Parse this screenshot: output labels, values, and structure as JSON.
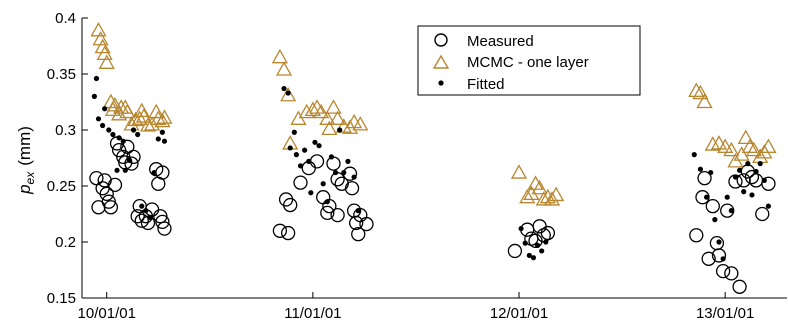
{
  "chart_data": {
    "type": "scatter",
    "title": "",
    "xlabel": "",
    "ylabel_main": "p",
    "ylabel_sub": "ex",
    "ylabel_unit": "(mm)",
    "ylim": [
      0.15,
      0.4
    ],
    "yticks": [
      0.15,
      0.2,
      0.25,
      0.3,
      0.35,
      0.4
    ],
    "ytick_labels": [
      "0.15",
      "0.2",
      "0.25",
      "0.3",
      "0.35",
      "0.4"
    ],
    "xlim": [
      -0.12,
      3.3
    ],
    "xticks": [
      0,
      1,
      2,
      3
    ],
    "xtick_labels": [
      "10/01/01",
      "11/01/01",
      "12/01/01",
      "13/01/01"
    ],
    "grid": false,
    "legend_position": "top-right",
    "colors": {
      "measured": "#000000",
      "mcmc": "#b8862e",
      "fitted": "#000000"
    },
    "series": [
      {
        "name": "Measured",
        "marker": "open-circle",
        "points": [
          [
            -0.05,
            0.257
          ],
          [
            -0.04,
            0.231
          ],
          [
            -0.02,
            0.248
          ],
          [
            -0.01,
            0.255
          ],
          [
            0.0,
            0.243
          ],
          [
            0.01,
            0.236
          ],
          [
            0.02,
            0.231
          ],
          [
            0.04,
            0.251
          ],
          [
            0.05,
            0.288
          ],
          [
            0.06,
            0.282
          ],
          [
            0.08,
            0.276
          ],
          [
            0.09,
            0.271
          ],
          [
            0.1,
            0.285
          ],
          [
            0.12,
            0.27
          ],
          [
            0.13,
            0.276
          ],
          [
            0.15,
            0.223
          ],
          [
            0.16,
            0.232
          ],
          [
            0.17,
            0.219
          ],
          [
            0.19,
            0.223
          ],
          [
            0.2,
            0.217
          ],
          [
            0.22,
            0.229
          ],
          [
            0.24,
            0.265
          ],
          [
            0.25,
            0.252
          ],
          [
            0.27,
            0.262
          ],
          [
            0.26,
            0.223
          ],
          [
            0.27,
            0.218
          ],
          [
            0.28,
            0.212
          ],
          [
            0.84,
            0.21
          ],
          [
            0.88,
            0.208
          ],
          [
            0.87,
            0.238
          ],
          [
            0.89,
            0.233
          ],
          [
            0.94,
            0.253
          ],
          [
            0.98,
            0.266
          ],
          [
            1.02,
            0.272
          ],
          [
            1.05,
            0.24
          ],
          [
            1.07,
            0.226
          ],
          [
            1.08,
            0.232
          ],
          [
            1.1,
            0.27
          ],
          [
            1.12,
            0.256
          ],
          [
            1.12,
            0.224
          ],
          [
            1.14,
            0.252
          ],
          [
            1.18,
            0.261
          ],
          [
            1.19,
            0.248
          ],
          [
            1.2,
            0.228
          ],
          [
            1.21,
            0.217
          ],
          [
            1.22,
            0.207
          ],
          [
            1.23,
            0.224
          ],
          [
            1.26,
            0.216
          ],
          [
            1.98,
            0.192
          ],
          [
            2.04,
            0.211
          ],
          [
            2.06,
            0.203
          ],
          [
            2.08,
            0.201
          ],
          [
            2.1,
            0.214
          ],
          [
            2.12,
            0.206
          ],
          [
            2.14,
            0.208
          ],
          [
            2.86,
            0.206
          ],
          [
            2.89,
            0.24
          ],
          [
            2.9,
            0.257
          ],
          [
            2.92,
            0.185
          ],
          [
            2.94,
            0.232
          ],
          [
            2.96,
            0.199
          ],
          [
            2.97,
            0.188
          ],
          [
            2.99,
            0.174
          ],
          [
            3.01,
            0.228
          ],
          [
            3.03,
            0.172
          ],
          [
            3.05,
            0.254
          ],
          [
            3.07,
            0.16
          ],
          [
            3.09,
            0.255
          ],
          [
            3.11,
            0.263
          ],
          [
            3.13,
            0.258
          ],
          [
            3.15,
            0.255
          ],
          [
            3.18,
            0.225
          ],
          [
            3.21,
            0.252
          ]
        ]
      },
      {
        "name": "MCMC - one layer",
        "marker": "open-triangle",
        "points": [
          [
            -0.04,
            0.389
          ],
          [
            -0.03,
            0.381
          ],
          [
            -0.02,
            0.374
          ],
          [
            -0.01,
            0.368
          ],
          [
            0.0,
            0.36
          ],
          [
            0.02,
            0.325
          ],
          [
            0.03,
            0.318
          ],
          [
            0.04,
            0.322
          ],
          [
            0.06,
            0.314
          ],
          [
            0.07,
            0.32
          ],
          [
            0.09,
            0.32
          ],
          [
            0.1,
            0.316
          ],
          [
            0.12,
            0.305
          ],
          [
            0.14,
            0.309
          ],
          [
            0.16,
            0.31
          ],
          [
            0.17,
            0.317
          ],
          [
            0.18,
            0.312
          ],
          [
            0.2,
            0.304
          ],
          [
            0.22,
            0.305
          ],
          [
            0.24,
            0.316
          ],
          [
            0.25,
            0.31
          ],
          [
            0.27,
            0.308
          ],
          [
            0.28,
            0.311
          ],
          [
            0.84,
            0.365
          ],
          [
            0.86,
            0.354
          ],
          [
            0.88,
            0.331
          ],
          [
            0.89,
            0.288
          ],
          [
            0.93,
            0.31
          ],
          [
            0.97,
            0.316
          ],
          [
            1.0,
            0.318
          ],
          [
            1.02,
            0.32
          ],
          [
            1.04,
            0.316
          ],
          [
            1.07,
            0.31
          ],
          [
            1.08,
            0.301
          ],
          [
            1.1,
            0.32
          ],
          [
            1.12,
            0.31
          ],
          [
            1.15,
            0.303
          ],
          [
            1.18,
            0.302
          ],
          [
            1.2,
            0.307
          ],
          [
            1.23,
            0.305
          ],
          [
            2.0,
            0.262
          ],
          [
            2.04,
            0.24
          ],
          [
            2.06,
            0.243
          ],
          [
            2.08,
            0.252
          ],
          [
            2.1,
            0.248
          ],
          [
            2.12,
            0.238
          ],
          [
            2.14,
            0.24
          ],
          [
            2.16,
            0.238
          ],
          [
            2.18,
            0.242
          ],
          [
            2.86,
            0.335
          ],
          [
            2.88,
            0.333
          ],
          [
            2.9,
            0.325
          ],
          [
            2.94,
            0.287
          ],
          [
            2.97,
            0.288
          ],
          [
            3.0,
            0.285
          ],
          [
            3.03,
            0.282
          ],
          [
            3.05,
            0.272
          ],
          [
            3.08,
            0.278
          ],
          [
            3.1,
            0.293
          ],
          [
            3.12,
            0.285
          ],
          [
            3.14,
            0.282
          ],
          [
            3.17,
            0.276
          ],
          [
            3.19,
            0.28
          ],
          [
            3.21,
            0.285
          ]
        ]
      },
      {
        "name": "Fitted",
        "marker": "dot",
        "points": [
          [
            -0.06,
            0.33
          ],
          [
            -0.05,
            0.346
          ],
          [
            -0.04,
            0.31
          ],
          [
            -0.02,
            0.304
          ],
          [
            -0.01,
            0.319
          ],
          [
            0.01,
            0.3
          ],
          [
            0.03,
            0.296
          ],
          [
            0.05,
            0.264
          ],
          [
            0.06,
            0.293
          ],
          [
            0.08,
            0.29
          ],
          [
            0.09,
            0.264
          ],
          [
            0.11,
            0.273
          ],
          [
            0.13,
            0.3
          ],
          [
            0.15,
            0.296
          ],
          [
            0.17,
            0.232
          ],
          [
            0.19,
            0.228
          ],
          [
            0.21,
            0.222
          ],
          [
            0.23,
            0.262
          ],
          [
            0.25,
            0.292
          ],
          [
            0.27,
            0.298
          ],
          [
            0.28,
            0.29
          ],
          [
            0.86,
            0.337
          ],
          [
            0.88,
            0.333
          ],
          [
            0.89,
            0.284
          ],
          [
            0.91,
            0.298
          ],
          [
            0.92,
            0.278
          ],
          [
            0.94,
            0.268
          ],
          [
            0.96,
            0.282
          ],
          [
            0.98,
            0.272
          ],
          [
            0.99,
            0.244
          ],
          [
            1.01,
            0.289
          ],
          [
            1.03,
            0.286
          ],
          [
            1.05,
            0.252
          ],
          [
            1.07,
            0.236
          ],
          [
            1.09,
            0.276
          ],
          [
            1.11,
            0.262
          ],
          [
            1.13,
            0.3
          ],
          [
            1.15,
            0.262
          ],
          [
            1.17,
            0.272
          ],
          [
            1.2,
            0.258
          ],
          [
            1.22,
            0.228
          ],
          [
            2.01,
            0.212
          ],
          [
            2.03,
            0.199
          ],
          [
            2.05,
            0.188
          ],
          [
            2.07,
            0.186
          ],
          [
            2.09,
            0.197
          ],
          [
            2.11,
            0.192
          ],
          [
            2.13,
            0.2
          ],
          [
            2.85,
            0.278
          ],
          [
            2.88,
            0.265
          ],
          [
            2.91,
            0.24
          ],
          [
            2.93,
            0.262
          ],
          [
            2.95,
            0.22
          ],
          [
            2.97,
            0.2
          ],
          [
            2.99,
            0.185
          ],
          [
            3.01,
            0.24
          ],
          [
            3.03,
            0.228
          ],
          [
            3.05,
            0.258
          ],
          [
            3.07,
            0.264
          ],
          [
            3.09,
            0.245
          ],
          [
            3.11,
            0.27
          ],
          [
            3.13,
            0.242
          ],
          [
            3.15,
            0.263
          ],
          [
            3.17,
            0.27
          ],
          [
            3.19,
            0.255
          ],
          [
            3.21,
            0.232
          ]
        ]
      }
    ]
  }
}
